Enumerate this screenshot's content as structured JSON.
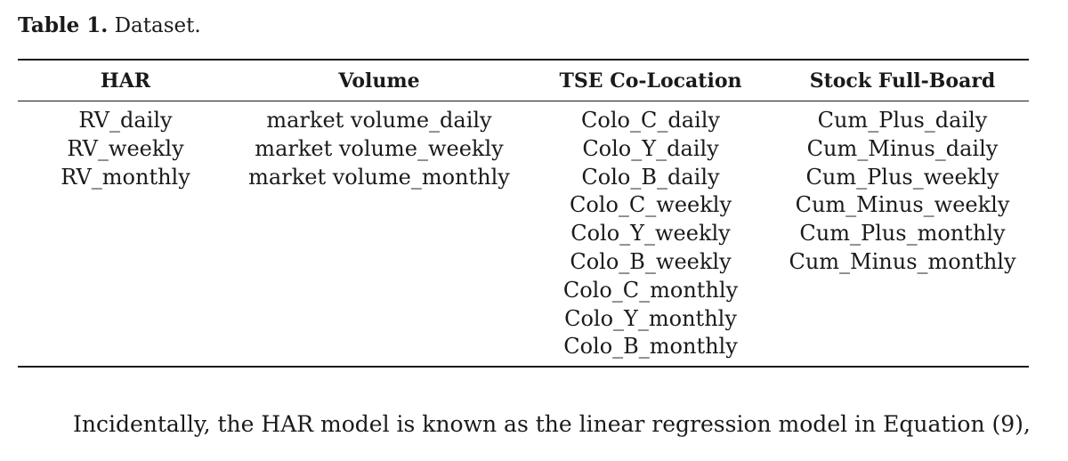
{
  "table": {
    "caption_label": "Table 1.",
    "caption_text": "Dataset.",
    "columns": [
      {
        "header": "HAR",
        "cells": [
          "RV_daily",
          "RV_weekly",
          "RV_monthly"
        ]
      },
      {
        "header": "Volume",
        "cells": [
          "market volume_daily",
          "market volume_weekly",
          "market volume_monthly"
        ]
      },
      {
        "header": "TSE Co-Location",
        "cells": [
          "Colo_C_daily",
          "Colo_Y_daily",
          "Colo_B_daily",
          "Colo_C_weekly",
          "Colo_Y_weekly",
          "Colo_B_weekly",
          "Colo_C_monthly",
          "Colo_Y_monthly",
          "Colo_B_monthly"
        ]
      },
      {
        "header": "Stock Full-Board",
        "cells": [
          "Cum_Plus_daily",
          "Cum_Minus_daily",
          "Cum_Plus_weekly",
          "Cum_Minus_weekly",
          "Cum_Plus_monthly",
          "Cum_Minus_monthly"
        ]
      }
    ]
  },
  "body": {
    "paragraph": "Incidentally, the HAR model is known as the linear regression model in Equation (9),"
  }
}
